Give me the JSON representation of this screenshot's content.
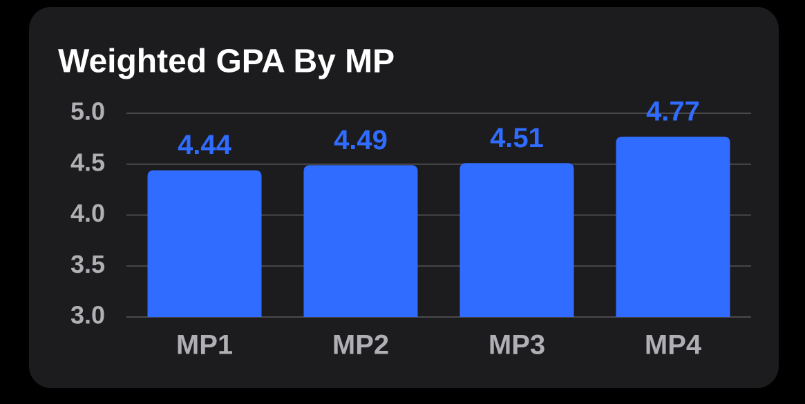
{
  "chart_data": {
    "type": "bar",
    "title": "Weighted GPA By MP",
    "categories": [
      "MP1",
      "MP2",
      "MP3",
      "MP4"
    ],
    "values": [
      4.44,
      4.49,
      4.51,
      4.77
    ],
    "color": "#306cff",
    "ylim": [
      3,
      5
    ],
    "yticks": [
      {
        "value": 3,
        "label": "3.0"
      },
      3.5,
      {
        "value": 4,
        "label": "4.0"
      },
      4.5,
      {
        "value": 5,
        "label": "5.0"
      }
    ],
    "grid": true
  }
}
